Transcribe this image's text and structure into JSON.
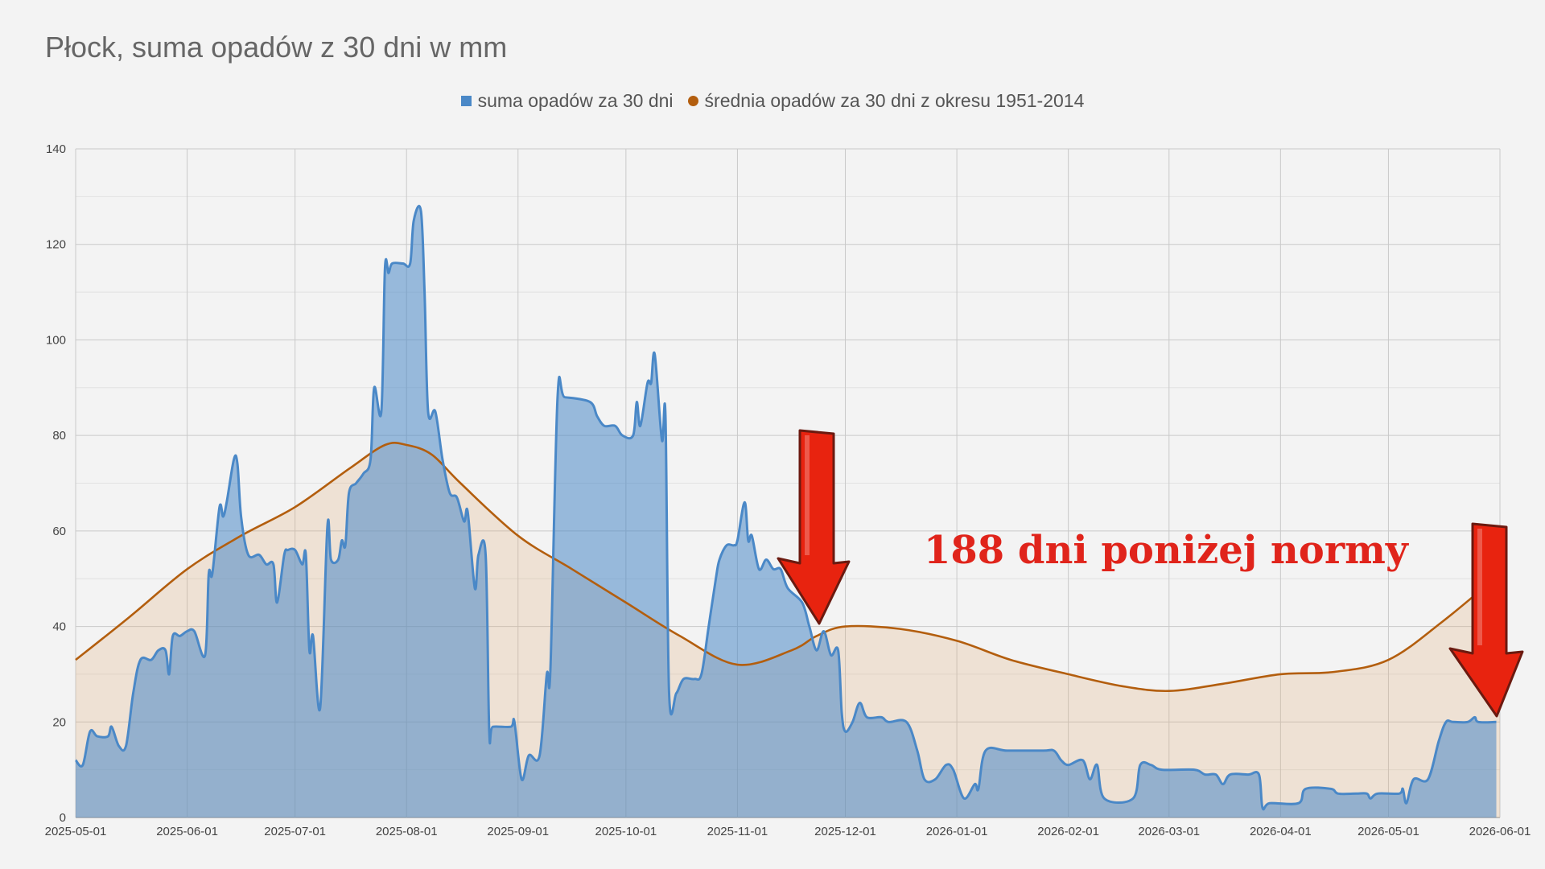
{
  "chart_data": {
    "type": "area",
    "title": "Płock, suma opadów z 30 dni w mm",
    "xlabel": "",
    "ylabel": "",
    "ylim": [
      0,
      140
    ],
    "xlim": [
      "2025-05-01",
      "2026-06-01"
    ],
    "y_ticks": [
      "0",
      "20",
      "40",
      "60",
      "80",
      "100",
      "120",
      "140"
    ],
    "x_ticks": [
      "2025-05-01",
      "2025-06-01",
      "2025-07-01",
      "2025-08-01",
      "2025-09-01",
      "2025-10-01",
      "2025-11-01",
      "2025-12-01",
      "2026-01-01",
      "2026-02-01",
      "2026-03-01",
      "2026-04-01",
      "2026-05-01",
      "2026-06-01"
    ],
    "grid": true,
    "legend_position": "top",
    "annotation": "188 dni poniżej normy",
    "annotation_color": "#e0241b",
    "series": [
      {
        "name": "suma opadów za 30 dni",
        "color": "#4a88c7",
        "marker": "square",
        "points": [
          [
            "2025-05-01",
            12
          ],
          [
            "2025-05-03",
            11
          ],
          [
            "2025-05-05",
            18
          ],
          [
            "2025-05-07",
            17
          ],
          [
            "2025-05-10",
            17
          ],
          [
            "2025-05-11",
            19
          ],
          [
            "2025-05-13",
            15
          ],
          [
            "2025-05-15",
            15
          ],
          [
            "2025-05-17",
            26
          ],
          [
            "2025-05-19",
            33
          ],
          [
            "2025-05-22",
            33
          ],
          [
            "2025-05-24",
            35
          ],
          [
            "2025-05-26",
            35
          ],
          [
            "2025-05-27",
            30
          ],
          [
            "2025-05-28",
            38
          ],
          [
            "2025-05-30",
            38
          ],
          [
            "2025-06-01",
            39
          ],
          [
            "2025-06-03",
            39
          ],
          [
            "2025-06-06",
            34
          ],
          [
            "2025-06-07",
            51
          ],
          [
            "2025-06-08",
            51
          ],
          [
            "2025-06-10",
            65
          ],
          [
            "2025-06-11",
            63
          ],
          [
            "2025-06-12",
            66
          ],
          [
            "2025-06-14",
            75
          ],
          [
            "2025-06-15",
            74
          ],
          [
            "2025-06-16",
            63
          ],
          [
            "2025-06-18",
            55
          ],
          [
            "2025-06-21",
            55
          ],
          [
            "2025-06-23",
            53
          ],
          [
            "2025-06-25",
            53
          ],
          [
            "2025-06-26",
            45
          ],
          [
            "2025-06-28",
            55
          ],
          [
            "2025-06-29",
            56
          ],
          [
            "2025-07-01",
            56
          ],
          [
            "2025-07-03",
            53
          ],
          [
            "2025-07-04",
            55
          ],
          [
            "2025-07-05",
            35
          ],
          [
            "2025-07.06",
            38
          ],
          [
            "2025-07-08",
            23
          ],
          [
            "2025-07-10",
            61
          ],
          [
            "2025-07-11",
            54
          ],
          [
            "2025-07-13",
            54
          ],
          [
            "2025-07-14",
            58
          ],
          [
            "2025-07-15",
            57
          ],
          [
            "2025-07-16",
            68
          ],
          [
            "2025-07-18",
            70
          ],
          [
            "2025-07-20",
            72
          ],
          [
            "2025-07-22",
            75
          ],
          [
            "2025-07-23",
            90
          ],
          [
            "2025-07-25",
            85
          ],
          [
            "2025-07-26",
            115
          ],
          [
            "2025-07-27",
            114
          ],
          [
            "2025-07-28",
            116
          ],
          [
            "2025-07-31",
            116
          ],
          [
            "2025-08-02",
            116
          ],
          [
            "2025-08-03",
            125
          ],
          [
            "2025-08-05",
            127
          ],
          [
            "2025-08-06",
            110
          ],
          [
            "2025-08-07",
            85
          ],
          [
            "2025-08-09",
            85
          ],
          [
            "2025-08-11",
            75
          ],
          [
            "2025-08-13",
            68
          ],
          [
            "2025-08-15",
            67
          ],
          [
            "2025-08-17",
            62
          ],
          [
            "2025-08-18",
            64
          ],
          [
            "2025-08-20",
            48
          ],
          [
            "2025-08-21",
            55
          ],
          [
            "2025-08-23",
            55
          ],
          [
            "2025-08-24",
            18
          ],
          [
            "2025-08-25",
            19
          ],
          [
            "2025-08-30",
            19
          ],
          [
            "2025-08-31",
            20
          ],
          [
            "2025-09-02",
            8
          ],
          [
            "2025-09-04",
            13
          ],
          [
            "2025-09-07",
            13
          ],
          [
            "2025-09-09",
            30
          ],
          [
            "2025-09-10",
            31
          ],
          [
            "2025-09-12",
            88
          ],
          [
            "2025-09-14",
            88
          ],
          [
            "2025-09-21",
            87
          ],
          [
            "2025-09-23",
            84
          ],
          [
            "2025-09-25",
            82
          ],
          [
            "2025-09-28",
            82
          ],
          [
            "2025-09-30",
            80
          ],
          [
            "2025-10-03",
            80
          ],
          [
            "2025-10-04",
            87
          ],
          [
            "2025-10-05",
            82
          ],
          [
            "2025-10-07",
            91
          ],
          [
            "2025-10-08",
            91
          ],
          [
            "2025-10-09",
            97
          ],
          [
            "2025-10-11",
            79
          ],
          [
            "2025-10-12",
            84
          ],
          [
            "2025-10-13",
            26
          ],
          [
            "2025-10-15",
            26
          ],
          [
            "2025-10-17",
            29
          ],
          [
            "2025-10-20",
            29
          ],
          [
            "2025-10-22",
            30
          ],
          [
            "2025-10-24",
            40
          ],
          [
            "2025-10-26",
            50
          ],
          [
            "2025-10-27",
            54
          ],
          [
            "2025-10-29",
            57
          ],
          [
            "2025-10-31",
            57
          ],
          [
            "2025-11-01",
            58
          ],
          [
            "2025-11-03",
            66
          ],
          [
            "2025-11-04",
            58
          ],
          [
            "2025-11-05",
            59
          ],
          [
            "2025-11-07",
            52
          ],
          [
            "2025-11-09",
            54
          ],
          [
            "2025-11-11",
            52
          ],
          [
            "2025-11-13",
            52
          ],
          [
            "2025-11-15",
            48
          ],
          [
            "2025-11-19",
            45
          ],
          [
            "2025-11-21",
            40
          ],
          [
            "2025-11-23",
            35
          ],
          [
            "2025-11-25",
            39
          ],
          [
            "2025-11-27",
            34
          ],
          [
            "2025-11-29",
            35
          ],
          [
            "2025-11-30",
            22
          ],
          [
            "2025-12-01",
            18
          ],
          [
            "2025-12-03",
            20
          ],
          [
            "2025-12-05",
            24
          ],
          [
            "2025-12-07",
            21
          ],
          [
            "2025-12-11",
            21
          ],
          [
            "2025-12-13",
            20
          ],
          [
            "2025-12-18",
            20
          ],
          [
            "2025-12-21",
            14
          ],
          [
            "2025-12-23",
            8
          ],
          [
            "2025-12-26",
            8
          ],
          [
            "2025-12-29",
            11
          ],
          [
            "2025-12-31",
            10
          ],
          [
            "2026-01-03",
            4
          ],
          [
            "2026-01-06",
            7
          ],
          [
            "2026-01-07",
            6
          ],
          [
            "2026-01-09",
            14
          ],
          [
            "2026-01-15",
            14
          ],
          [
            "2026-01-25",
            14
          ],
          [
            "2026-01-28",
            14
          ],
          [
            "2026-01-30",
            12
          ],
          [
            "2026-02-01",
            11
          ],
          [
            "2026-02-05",
            12
          ],
          [
            "2026-02-07",
            8
          ],
          [
            "2026-02-09",
            11
          ],
          [
            "2026-02-11",
            4
          ],
          [
            "2026-02-19",
            4
          ],
          [
            "2026-02-21",
            11
          ],
          [
            "2026-02-24",
            11
          ],
          [
            "2026-02-27",
            10
          ],
          [
            "2026-03-08",
            10
          ],
          [
            "2026-03-11",
            9
          ],
          [
            "2026-03-14",
            9
          ],
          [
            "2026-03-16",
            7
          ],
          [
            "2026-03-18",
            9
          ],
          [
            "2026-03-23",
            9
          ],
          [
            "2026-03-26",
            9
          ],
          [
            "2026-03-27",
            2
          ],
          [
            "2026-03-29",
            3
          ],
          [
            "2026-04-06",
            3
          ],
          [
            "2026-04-08",
            6
          ],
          [
            "2026-04-15",
            6
          ],
          [
            "2026-04-17",
            5
          ],
          [
            "2026-04-22",
            5
          ],
          [
            "2026-04-25",
            5
          ],
          [
            "2026-04-26",
            4
          ],
          [
            "2026-04-28",
            5
          ],
          [
            "2026-05-04",
            5
          ],
          [
            "2026-05-05",
            6
          ],
          [
            "2026-05-06",
            3
          ],
          [
            "2026-05-08",
            8
          ],
          [
            "2026-05-12",
            8
          ],
          [
            "2026-05-15",
            16
          ],
          [
            "2026-05-17",
            20
          ],
          [
            "2026-05-19",
            20
          ],
          [
            "2026-05-23",
            20
          ],
          [
            "2026-05-25",
            21
          ],
          [
            "2026-05-26",
            20
          ],
          [
            "2026-05-31",
            20
          ]
        ]
      },
      {
        "name": "średnia opadów za 30 dni z okresu 1951-2014",
        "color": "#b35e0e",
        "marker": "circle",
        "points": [
          [
            "2025-05-01",
            33
          ],
          [
            "2025-05-16",
            42
          ],
          [
            "2025-06-01",
            52
          ],
          [
            "2025-06-16",
            59
          ],
          [
            "2025-07-01",
            65
          ],
          [
            "2025-07-16",
            73
          ],
          [
            "2025-07-26",
            78
          ],
          [
            "2025-08-01",
            78
          ],
          [
            "2025-08-08",
            76
          ],
          [
            "2025-08-16",
            70
          ],
          [
            "2025-09-01",
            59
          ],
          [
            "2025-09-16",
            52
          ],
          [
            "2025-10-01",
            45
          ],
          [
            "2025-10-16",
            38
          ],
          [
            "2025-11-01",
            32
          ],
          [
            "2025-11-16",
            35
          ],
          [
            "2025-11-23",
            38
          ],
          [
            "2025-12-01",
            40
          ],
          [
            "2025-12-16",
            39.5
          ],
          [
            "2026-01-01",
            37
          ],
          [
            "2026-01-16",
            33
          ],
          [
            "2026-02-01",
            30
          ],
          [
            "2026-02-16",
            27.5
          ],
          [
            "2026-03-01",
            26.5
          ],
          [
            "2026-03-16",
            28
          ],
          [
            "2026-04-01",
            30
          ],
          [
            "2026-04-16",
            30.5
          ],
          [
            "2026-05-01",
            33
          ],
          [
            "2026-05-16",
            41
          ],
          [
            "2026-06-01",
            51
          ]
        ]
      }
    ]
  }
}
